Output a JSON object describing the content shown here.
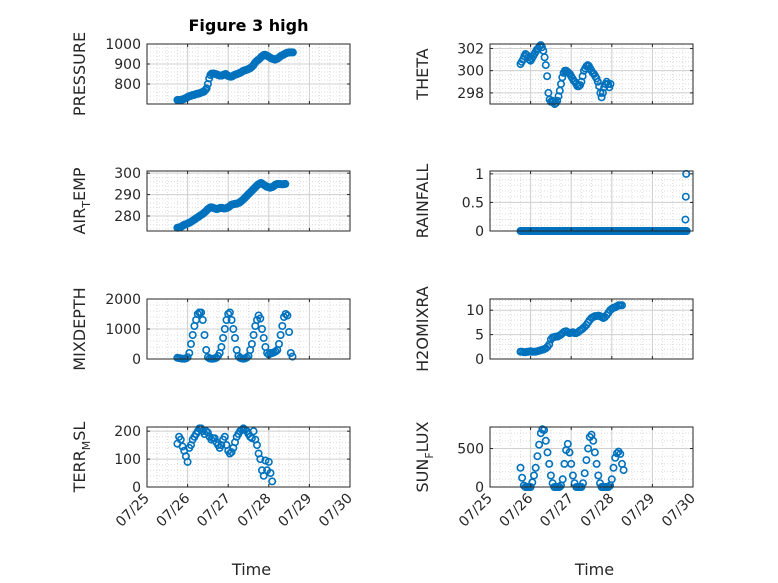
{
  "figure": {
    "title": "Figure 3 high",
    "marker_color": "#0072BD"
  },
  "chart_data": [
    {
      "id": "pressure",
      "type": "scatter",
      "title": "Figure 3 high",
      "ylabel": "PRESSURE",
      "ylabel_base": "PRESSURE",
      "ylabel_sub": "",
      "ylabel_tail": "",
      "xlabel": "",
      "xlim": [
        "07/25",
        "07/30"
      ],
      "ylim": [
        700,
        1000
      ],
      "yticks": [
        800,
        900,
        1000
      ],
      "xtick_labels": [],
      "grid": true,
      "x_start": "07/25 18:00",
      "x_step_hours": 0.75,
      "values": [
        720,
        720,
        720,
        722,
        722,
        725,
        728,
        730,
        735,
        738,
        740,
        742,
        745,
        745,
        748,
        750,
        752,
        752,
        755,
        758,
        760,
        762,
        770,
        778,
        800,
        828,
        845,
        852,
        852,
        852,
        850,
        848,
        845,
        842,
        842,
        842,
        845,
        848,
        850,
        845,
        840,
        838,
        836,
        838,
        842,
        845,
        848,
        850,
        852,
        855,
        858,
        862,
        866,
        868,
        870,
        872,
        875,
        878,
        882,
        888,
        895,
        905,
        912,
        918,
        922,
        928,
        935,
        940,
        945,
        946,
        944,
        940,
        936,
        932,
        928,
        926,
        924,
        922,
        925,
        928,
        932,
        938,
        942,
        945,
        948,
        952,
        955,
        957,
        958,
        958,
        958,
        958
      ]
    },
    {
      "id": "theta",
      "type": "scatter",
      "ylabel": "THETA",
      "ylabel_base": "THETA",
      "ylabel_sub": "",
      "ylabel_tail": "",
      "xlabel": "",
      "xlim": [
        "07/25",
        "07/30"
      ],
      "ylim": [
        297,
        302.4
      ],
      "yticks": [
        298,
        300,
        302
      ],
      "xtick_labels": [],
      "grid": true,
      "x_start": "07/25 18:00",
      "x_step_hours": 0.75,
      "values": [
        300.6,
        300.8,
        301.0,
        301.3,
        301.5,
        301.4,
        301.2,
        301.0,
        300.9,
        301.1,
        301.3,
        301.5,
        301.7,
        301.9,
        302.0,
        302.2,
        302.3,
        302.1,
        301.8,
        301.2,
        300.5,
        299.5,
        298.0,
        297.4,
        297.2,
        297.3,
        297.2,
        297.0,
        297.1,
        297.3,
        297.7,
        298.2,
        298.8,
        299.4,
        299.8,
        300.0,
        300.0,
        299.9,
        299.8,
        299.7,
        299.5,
        299.3,
        299.1,
        299.0,
        298.8,
        298.6,
        298.6,
        298.7,
        299.0,
        299.5,
        300.0,
        300.2,
        300.4,
        300.5,
        300.4,
        300.2,
        300.0,
        299.8,
        299.7,
        299.5,
        299.3,
        299.0,
        298.6,
        298.0,
        297.6,
        298.0,
        298.5,
        298.8,
        299.0,
        298.8,
        298.5,
        298.8
      ]
    },
    {
      "id": "air_temp",
      "type": "scatter",
      "ylabel": "AIR_TEMP",
      "ylabel_base": "AIR",
      "ylabel_sub": "T",
      "ylabel_tail": "EMP",
      "xlabel": "",
      "xlim": [
        "07/25",
        "07/30"
      ],
      "ylim": [
        273,
        301
      ],
      "yticks": [
        280,
        290,
        300
      ],
      "xtick_labels": [],
      "grid": true,
      "x_start": "07/25 18:00",
      "x_step_hours": 0.75,
      "values": [
        274.5,
        274.6,
        274.8,
        275.0,
        275.4,
        275.8,
        276.0,
        276.2,
        276.5,
        276.8,
        277.0,
        277.4,
        277.8,
        278.2,
        278.6,
        279.0,
        279.4,
        279.8,
        280.2,
        280.6,
        281.0,
        281.5,
        282.0,
        282.6,
        283.2,
        283.6,
        284.0,
        284.0,
        283.8,
        283.6,
        283.4,
        283.2,
        283.4,
        283.6,
        283.8,
        283.8,
        283.6,
        283.5,
        283.6,
        283.8,
        284.0,
        284.5,
        285.0,
        285.3,
        285.5,
        285.6,
        285.7,
        285.8,
        286.0,
        286.3,
        286.8,
        287.3,
        287.8,
        288.4,
        289.0,
        289.6,
        290.2,
        290.8,
        291.4,
        292.0,
        292.6,
        293.2,
        293.8,
        294.4,
        294.8,
        295.2,
        295.4,
        295.0,
        294.6,
        294.2,
        293.8,
        293.6,
        293.4,
        293.2,
        293.4,
        293.6,
        294.0,
        294.5,
        294.8,
        295.0,
        295.0,
        294.9,
        294.8,
        294.8,
        294.9,
        295.0
      ]
    },
    {
      "id": "rainfall",
      "type": "scatter",
      "ylabel": "RAINFALL",
      "ylabel_base": "RAINFALL",
      "ylabel_sub": "",
      "ylabel_tail": "",
      "xlabel": "",
      "xlim": [
        "07/25",
        "07/30"
      ],
      "ylim": [
        0,
        1.05
      ],
      "yticks": [
        0,
        0.5,
        1
      ],
      "xtick_labels": [],
      "grid": true,
      "x_start": "07/25 18:00",
      "x_step_hours": 0.75,
      "zero_count": 132,
      "extra_points": [
        {
          "x": "07/29 19:30",
          "y": 0.2
        },
        {
          "x": "07/29 19:45",
          "y": 0.6
        },
        {
          "x": "07/29 20:00",
          "y": 1.0
        }
      ]
    },
    {
      "id": "mixdepth",
      "type": "scatter",
      "ylabel": "MIXDEPTH",
      "ylabel_base": "MIXDEPTH",
      "ylabel_sub": "",
      "ylabel_tail": "",
      "xlabel": "",
      "xlim": [
        "07/25",
        "07/30"
      ],
      "ylim": [
        0,
        2000
      ],
      "yticks": [
        0,
        1000,
        2000
      ],
      "xtick_labels": [],
      "grid": true,
      "x_start": "07/25 18:00",
      "x_step_hours": 1.0,
      "values": [
        40,
        30,
        20,
        10,
        10,
        20,
        60,
        200,
        500,
        800,
        1100,
        1300,
        1500,
        1550,
        1550,
        1300,
        800,
        300,
        60,
        20,
        10,
        10,
        20,
        40,
        100,
        200,
        400,
        700,
        1000,
        1300,
        1500,
        1550,
        1300,
        1000,
        700,
        300,
        100,
        40,
        20,
        10,
        20,
        50,
        100,
        300,
        500,
        800,
        1100,
        1300,
        1450,
        1350,
        1000,
        700,
        400,
        200,
        150,
        200,
        200,
        220,
        250,
        300,
        500,
        800,
        1100,
        1400,
        1500,
        1450,
        900,
        200,
        80
      ]
    },
    {
      "id": "h2omixra",
      "type": "scatter",
      "ylabel": "H2OMIXRA",
      "ylabel_base": "H2OMIXRA",
      "ylabel_sub": "",
      "ylabel_tail": "",
      "xlabel": "",
      "xlim": [
        "07/25",
        "07/30"
      ],
      "ylim": [
        0,
        12.3
      ],
      "yticks": [
        0,
        5,
        10
      ],
      "xtick_labels": [],
      "grid": true,
      "x_start": "07/25 18:00",
      "x_step_hours": 1.0,
      "values": [
        1.5,
        1.5,
        1.4,
        1.4,
        1.5,
        1.5,
        1.6,
        1.5,
        1.5,
        1.5,
        1.6,
        1.7,
        1.8,
        1.9,
        2.0,
        2.2,
        2.5,
        3.0,
        4.0,
        4.4,
        4.5,
        4.6,
        4.6,
        4.8,
        5.0,
        5.3,
        5.6,
        5.7,
        5.5,
        5.3,
        5.4,
        5.5,
        5.3,
        5.3,
        5.5,
        5.8,
        6.0,
        6.3,
        6.6,
        7.0,
        7.5,
        8.0,
        8.4,
        8.6,
        8.8,
        8.8,
        8.9,
        8.8,
        8.6,
        8.4,
        8.6,
        9.0,
        9.5,
        10.0,
        10.3,
        10.5,
        10.6,
        10.8,
        11.0,
        11.0,
        11.0
      ]
    },
    {
      "id": "terr_msl",
      "type": "scatter",
      "ylabel": "TERR_MSL",
      "ylabel_base": "TERR",
      "ylabel_sub": "M",
      "ylabel_tail": "SL",
      "xlabel": "Time",
      "xlim": [
        "07/25",
        "07/30"
      ],
      "ylim": [
        0,
        215
      ],
      "yticks": [
        0,
        100,
        200
      ],
      "grid": true,
      "xtick_labels": [
        "07/25",
        "07/26",
        "07/27",
        "07/28",
        "07/29",
        "07/30"
      ],
      "x_start": "07/25 18:00",
      "x_step_hours": 1.0,
      "values": [
        155,
        180,
        170,
        145,
        130,
        110,
        90,
        140,
        150,
        170,
        180,
        190,
        200,
        210,
        210,
        200,
        190,
        200,
        195,
        180,
        170,
        175,
        175,
        160,
        150,
        140,
        150,
        170,
        180,
        150,
        130,
        120,
        125,
        140,
        160,
        180,
        190,
        200,
        205,
        210,
        205,
        200,
        190,
        180,
        175,
        200,
        170,
        150,
        120,
        100,
        60,
        40,
        95,
        60,
        90,
        50,
        20
      ]
    },
    {
      "id": "sun_flux",
      "type": "scatter",
      "ylabel": "SUN_FLUX",
      "ylabel_base": "SUN",
      "ylabel_sub": "F",
      "ylabel_tail": "LUX",
      "xlabel": "Time",
      "xlim": [
        "07/25",
        "07/30"
      ],
      "ylim": [
        0,
        780
      ],
      "yticks": [
        0,
        500
      ],
      "grid": true,
      "xtick_labels": [
        "07/25",
        "07/26",
        "07/27",
        "07/28",
        "07/29",
        "07/30"
      ],
      "x_start": "07/25 18:00",
      "x_step_hours": 1.0,
      "values": [
        250,
        120,
        20,
        0,
        0,
        0,
        0,
        60,
        150,
        250,
        400,
        550,
        700,
        750,
        740,
        600,
        450,
        300,
        150,
        50,
        0,
        0,
        0,
        0,
        20,
        100,
        300,
        480,
        560,
        450,
        300,
        150,
        50,
        0,
        0,
        0,
        0,
        50,
        180,
        350,
        500,
        650,
        680,
        600,
        450,
        300,
        150,
        50,
        0,
        0,
        0,
        0,
        0,
        20,
        100,
        250,
        380,
        440,
        460,
        430,
        300,
        220
      ]
    }
  ]
}
